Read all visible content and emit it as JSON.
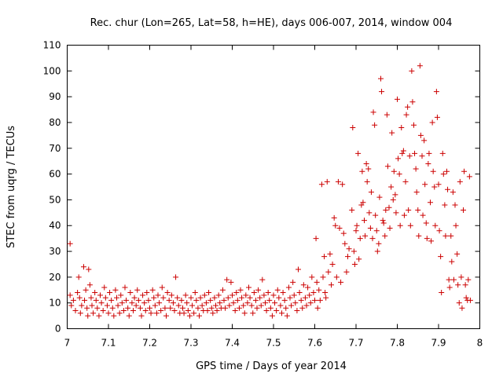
{
  "chart_data": {
    "type": "scatter",
    "title": "Rec. chur (Lon=265, Lat=58, h=HE), days 006-007, 2014, window 004",
    "xlabel": "GPS time / Days of year 2014",
    "ylabel": "STEC from uqrg / TECUs",
    "xlim": [
      7.0,
      8.0
    ],
    "ylim": [
      0,
      110
    ],
    "x_ticks": [
      "7",
      "7.1",
      "7.2",
      "7.3",
      "7.4",
      "7.5",
      "7.6",
      "7.7",
      "7.8",
      "7.9",
      "8"
    ],
    "y_ticks": [
      "0",
      "10",
      "20",
      "30",
      "40",
      "50",
      "60",
      "70",
      "80",
      "90",
      "100",
      "110"
    ],
    "grid": false,
    "marker": "plus",
    "color": "#cc0000",
    "series": [
      {
        "name": "STEC",
        "points": [
          [
            7.007,
            33
          ],
          [
            7.007,
            13
          ],
          [
            7.01,
            9
          ],
          [
            7.015,
            11
          ],
          [
            7.02,
            7
          ],
          [
            7.025,
            14
          ],
          [
            7.028,
            20
          ],
          [
            7.03,
            12
          ],
          [
            7.032,
            6
          ],
          [
            7.035,
            9
          ],
          [
            7.04,
            24
          ],
          [
            7.042,
            11
          ],
          [
            7.045,
            15
          ],
          [
            7.048,
            8
          ],
          [
            7.05,
            5
          ],
          [
            7.052,
            23
          ],
          [
            7.055,
            17
          ],
          [
            7.058,
            12
          ],
          [
            7.06,
            9
          ],
          [
            7.063,
            6
          ],
          [
            7.067,
            14
          ],
          [
            7.07,
            11
          ],
          [
            7.073,
            8
          ],
          [
            7.077,
            5
          ],
          [
            7.08,
            13
          ],
          [
            7.083,
            10
          ],
          [
            7.087,
            7
          ],
          [
            7.09,
            16
          ],
          [
            7.093,
            12
          ],
          [
            7.097,
            9
          ],
          [
            7.1,
            6
          ],
          [
            7.103,
            14
          ],
          [
            7.107,
            11
          ],
          [
            7.11,
            8
          ],
          [
            7.113,
            5
          ],
          [
            7.117,
            15
          ],
          [
            7.12,
            12
          ],
          [
            7.123,
            9
          ],
          [
            7.127,
            6
          ],
          [
            7.13,
            13
          ],
          [
            7.133,
            10
          ],
          [
            7.137,
            7
          ],
          [
            7.14,
            16
          ],
          [
            7.143,
            11
          ],
          [
            7.147,
            8
          ],
          [
            7.15,
            5
          ],
          [
            7.153,
            14
          ],
          [
            7.157,
            10
          ],
          [
            7.16,
            7
          ],
          [
            7.163,
            12
          ],
          [
            7.167,
            9
          ],
          [
            7.17,
            15
          ],
          [
            7.173,
            11
          ],
          [
            7.177,
            8
          ],
          [
            7.18,
            5
          ],
          [
            7.183,
            13
          ],
          [
            7.187,
            10
          ],
          [
            7.19,
            7
          ],
          [
            7.193,
            14
          ],
          [
            7.197,
            11
          ],
          [
            7.2,
            8
          ],
          [
            7.203,
            6
          ],
          [
            7.207,
            15
          ],
          [
            7.21,
            12
          ],
          [
            7.213,
            9
          ],
          [
            7.217,
            6
          ],
          [
            7.22,
            13
          ],
          [
            7.223,
            10
          ],
          [
            7.227,
            7
          ],
          [
            7.23,
            16
          ],
          [
            7.233,
            12
          ],
          [
            7.237,
            8
          ],
          [
            7.24,
            5
          ],
          [
            7.243,
            14
          ],
          [
            7.247,
            11
          ],
          [
            7.25,
            8
          ],
          [
            7.253,
            13
          ],
          [
            7.257,
            10
          ],
          [
            7.26,
            7
          ],
          [
            7.263,
            20
          ],
          [
            7.267,
            12
          ],
          [
            7.27,
            9
          ],
          [
            7.273,
            6
          ],
          [
            7.277,
            11
          ],
          [
            7.28,
            8
          ],
          [
            7.283,
            6
          ],
          [
            7.287,
            13
          ],
          [
            7.29,
            10
          ],
          [
            7.293,
            7
          ],
          [
            7.297,
            5
          ],
          [
            7.3,
            12
          ],
          [
            7.303,
            9
          ],
          [
            7.307,
            6
          ],
          [
            7.31,
            14
          ],
          [
            7.313,
            11
          ],
          [
            7.317,
            8
          ],
          [
            7.32,
            5
          ],
          [
            7.323,
            12
          ],
          [
            7.327,
            9
          ],
          [
            7.33,
            7
          ],
          [
            7.333,
            13
          ],
          [
            7.337,
            10
          ],
          [
            7.34,
            7
          ],
          [
            7.343,
            14
          ],
          [
            7.347,
            11
          ],
          [
            7.35,
            8
          ],
          [
            7.353,
            6
          ],
          [
            7.357,
            12
          ],
          [
            7.36,
            9
          ],
          [
            7.363,
            7
          ],
          [
            7.367,
            13
          ],
          [
            7.37,
            10
          ],
          [
            7.373,
            8
          ],
          [
            7.377,
            15
          ],
          [
            7.38,
            11
          ],
          [
            7.383,
            8
          ],
          [
            7.387,
            19
          ],
          [
            7.39,
            12
          ],
          [
            7.393,
            9
          ],
          [
            7.397,
            18
          ],
          [
            7.4,
            13
          ],
          [
            7.403,
            10
          ],
          [
            7.407,
            7
          ],
          [
            7.41,
            14
          ],
          [
            7.413,
            11
          ],
          [
            7.417,
            8
          ],
          [
            7.42,
            15
          ],
          [
            7.423,
            12
          ],
          [
            7.427,
            9
          ],
          [
            7.43,
            6
          ],
          [
            7.433,
            13
          ],
          [
            7.437,
            10
          ],
          [
            7.44,
            16
          ],
          [
            7.443,
            12
          ],
          [
            7.447,
            9
          ],
          [
            7.45,
            6
          ],
          [
            7.453,
            14
          ],
          [
            7.457,
            11
          ],
          [
            7.46,
            8
          ],
          [
            7.463,
            15
          ],
          [
            7.467,
            12
          ],
          [
            7.47,
            9
          ],
          [
            7.473,
            19
          ],
          [
            7.477,
            13
          ],
          [
            7.48,
            10
          ],
          [
            7.483,
            7
          ],
          [
            7.487,
            14
          ],
          [
            7.49,
            11
          ],
          [
            7.493,
            8
          ],
          [
            7.497,
            5
          ],
          [
            7.5,
            13
          ],
          [
            7.503,
            10
          ],
          [
            7.507,
            7
          ],
          [
            7.51,
            15
          ],
          [
            7.513,
            12
          ],
          [
            7.517,
            9
          ],
          [
            7.52,
            6
          ],
          [
            7.523,
            14
          ],
          [
            7.527,
            11
          ],
          [
            7.53,
            8
          ],
          [
            7.533,
            5
          ],
          [
            7.537,
            16
          ],
          [
            7.54,
            12
          ],
          [
            7.543,
            9
          ],
          [
            7.547,
            18
          ],
          [
            7.55,
            13
          ],
          [
            7.553,
            10
          ],
          [
            7.557,
            7
          ],
          [
            7.56,
            23
          ],
          [
            7.563,
            14
          ],
          [
            7.567,
            11
          ],
          [
            7.57,
            8
          ],
          [
            7.573,
            17
          ],
          [
            7.577,
            12
          ],
          [
            7.58,
            9
          ],
          [
            7.583,
            16
          ],
          [
            7.587,
            13
          ],
          [
            7.59,
            10
          ],
          [
            7.593,
            20
          ],
          [
            7.597,
            14
          ],
          [
            7.6,
            11
          ],
          [
            7.603,
            35
          ],
          [
            7.605,
            18
          ],
          [
            7.607,
            8
          ],
          [
            7.61,
            15
          ],
          [
            7.613,
            11
          ],
          [
            7.617,
            56
          ],
          [
            7.62,
            20
          ],
          [
            7.623,
            28
          ],
          [
            7.625,
            14
          ],
          [
            7.627,
            12
          ],
          [
            7.63,
            57
          ],
          [
            7.633,
            22
          ],
          [
            7.637,
            29
          ],
          [
            7.64,
            17
          ],
          [
            7.643,
            25
          ],
          [
            7.647,
            43
          ],
          [
            7.65,
            40
          ],
          [
            7.653,
            20
          ],
          [
            7.657,
            57
          ],
          [
            7.66,
            39
          ],
          [
            7.663,
            18
          ],
          [
            7.667,
            56
          ],
          [
            7.67,
            37
          ],
          [
            7.673,
            33
          ],
          [
            7.677,
            22
          ],
          [
            7.68,
            28
          ],
          [
            7.683,
            31
          ],
          [
            7.69,
            46
          ],
          [
            7.692,
            78
          ],
          [
            7.695,
            30
          ],
          [
            7.697,
            25
          ],
          [
            7.7,
            38
          ],
          [
            7.702,
            40
          ],
          [
            7.705,
            68
          ],
          [
            7.707,
            27
          ],
          [
            7.71,
            35
          ],
          [
            7.713,
            48
          ],
          [
            7.715,
            61
          ],
          [
            7.717,
            49
          ],
          [
            7.72,
            42
          ],
          [
            7.722,
            36
          ],
          [
            7.725,
            64
          ],
          [
            7.727,
            57
          ],
          [
            7.73,
            62
          ],
          [
            7.732,
            45
          ],
          [
            7.735,
            39
          ],
          [
            7.737,
            53
          ],
          [
            7.74,
            35
          ],
          [
            7.742,
            84
          ],
          [
            7.745,
            79
          ],
          [
            7.747,
            44
          ],
          [
            7.75,
            38
          ],
          [
            7.752,
            30
          ],
          [
            7.755,
            33
          ],
          [
            7.757,
            51
          ],
          [
            7.76,
            97
          ],
          [
            7.762,
            92
          ],
          [
            7.765,
            42
          ],
          [
            7.767,
            41
          ],
          [
            7.77,
            36
          ],
          [
            7.772,
            46
          ],
          [
            7.775,
            83
          ],
          [
            7.777,
            63
          ],
          [
            7.78,
            47
          ],
          [
            7.782,
            39
          ],
          [
            7.785,
            55
          ],
          [
            7.787,
            76
          ],
          [
            7.79,
            50
          ],
          [
            7.792,
            61
          ],
          [
            7.795,
            52
          ],
          [
            7.797,
            45
          ],
          [
            7.8,
            89
          ],
          [
            7.802,
            66
          ],
          [
            7.805,
            60
          ],
          [
            7.807,
            40
          ],
          [
            7.81,
            78
          ],
          [
            7.812,
            68
          ],
          [
            7.815,
            69
          ],
          [
            7.817,
            44
          ],
          [
            7.82,
            57
          ],
          [
            7.822,
            83
          ],
          [
            7.825,
            86
          ],
          [
            7.827,
            46
          ],
          [
            7.83,
            67
          ],
          [
            7.832,
            40
          ],
          [
            7.835,
            100
          ],
          [
            7.837,
            88
          ],
          [
            7.84,
            79
          ],
          [
            7.842,
            68
          ],
          [
            7.845,
            62
          ],
          [
            7.847,
            53
          ],
          [
            7.85,
            46
          ],
          [
            7.852,
            36
          ],
          [
            7.855,
            102
          ],
          [
            7.857,
            75
          ],
          [
            7.86,
            67
          ],
          [
            7.862,
            44
          ],
          [
            7.865,
            73
          ],
          [
            7.867,
            56
          ],
          [
            7.87,
            41
          ],
          [
            7.872,
            35
          ],
          [
            7.875,
            64
          ],
          [
            7.877,
            68
          ],
          [
            7.88,
            49
          ],
          [
            7.882,
            34
          ],
          [
            7.885,
            80
          ],
          [
            7.887,
            61
          ],
          [
            7.89,
            55
          ],
          [
            7.892,
            40
          ],
          [
            7.895,
            92
          ],
          [
            7.897,
            82
          ],
          [
            7.9,
            56
          ],
          [
            7.902,
            38
          ],
          [
            7.905,
            28
          ],
          [
            7.907,
            14
          ],
          [
            7.91,
            68
          ],
          [
            7.912,
            60
          ],
          [
            7.915,
            48
          ],
          [
            7.917,
            36
          ],
          [
            7.92,
            61
          ],
          [
            7.922,
            54
          ],
          [
            7.925,
            19
          ],
          [
            7.927,
            16
          ],
          [
            7.93,
            36
          ],
          [
            7.932,
            26
          ],
          [
            7.935,
            53
          ],
          [
            7.937,
            19
          ],
          [
            7.94,
            48
          ],
          [
            7.942,
            40
          ],
          [
            7.945,
            29
          ],
          [
            7.947,
            17
          ],
          [
            7.95,
            10
          ],
          [
            7.952,
            57
          ],
          [
            7.955,
            20
          ],
          [
            7.957,
            8
          ],
          [
            7.96,
            46
          ],
          [
            7.962,
            61
          ],
          [
            7.965,
            17
          ],
          [
            7.967,
            12
          ],
          [
            7.97,
            11
          ],
          [
            7.972,
            19
          ],
          [
            7.975,
            59
          ],
          [
            7.977,
            11
          ]
        ]
      }
    ]
  }
}
